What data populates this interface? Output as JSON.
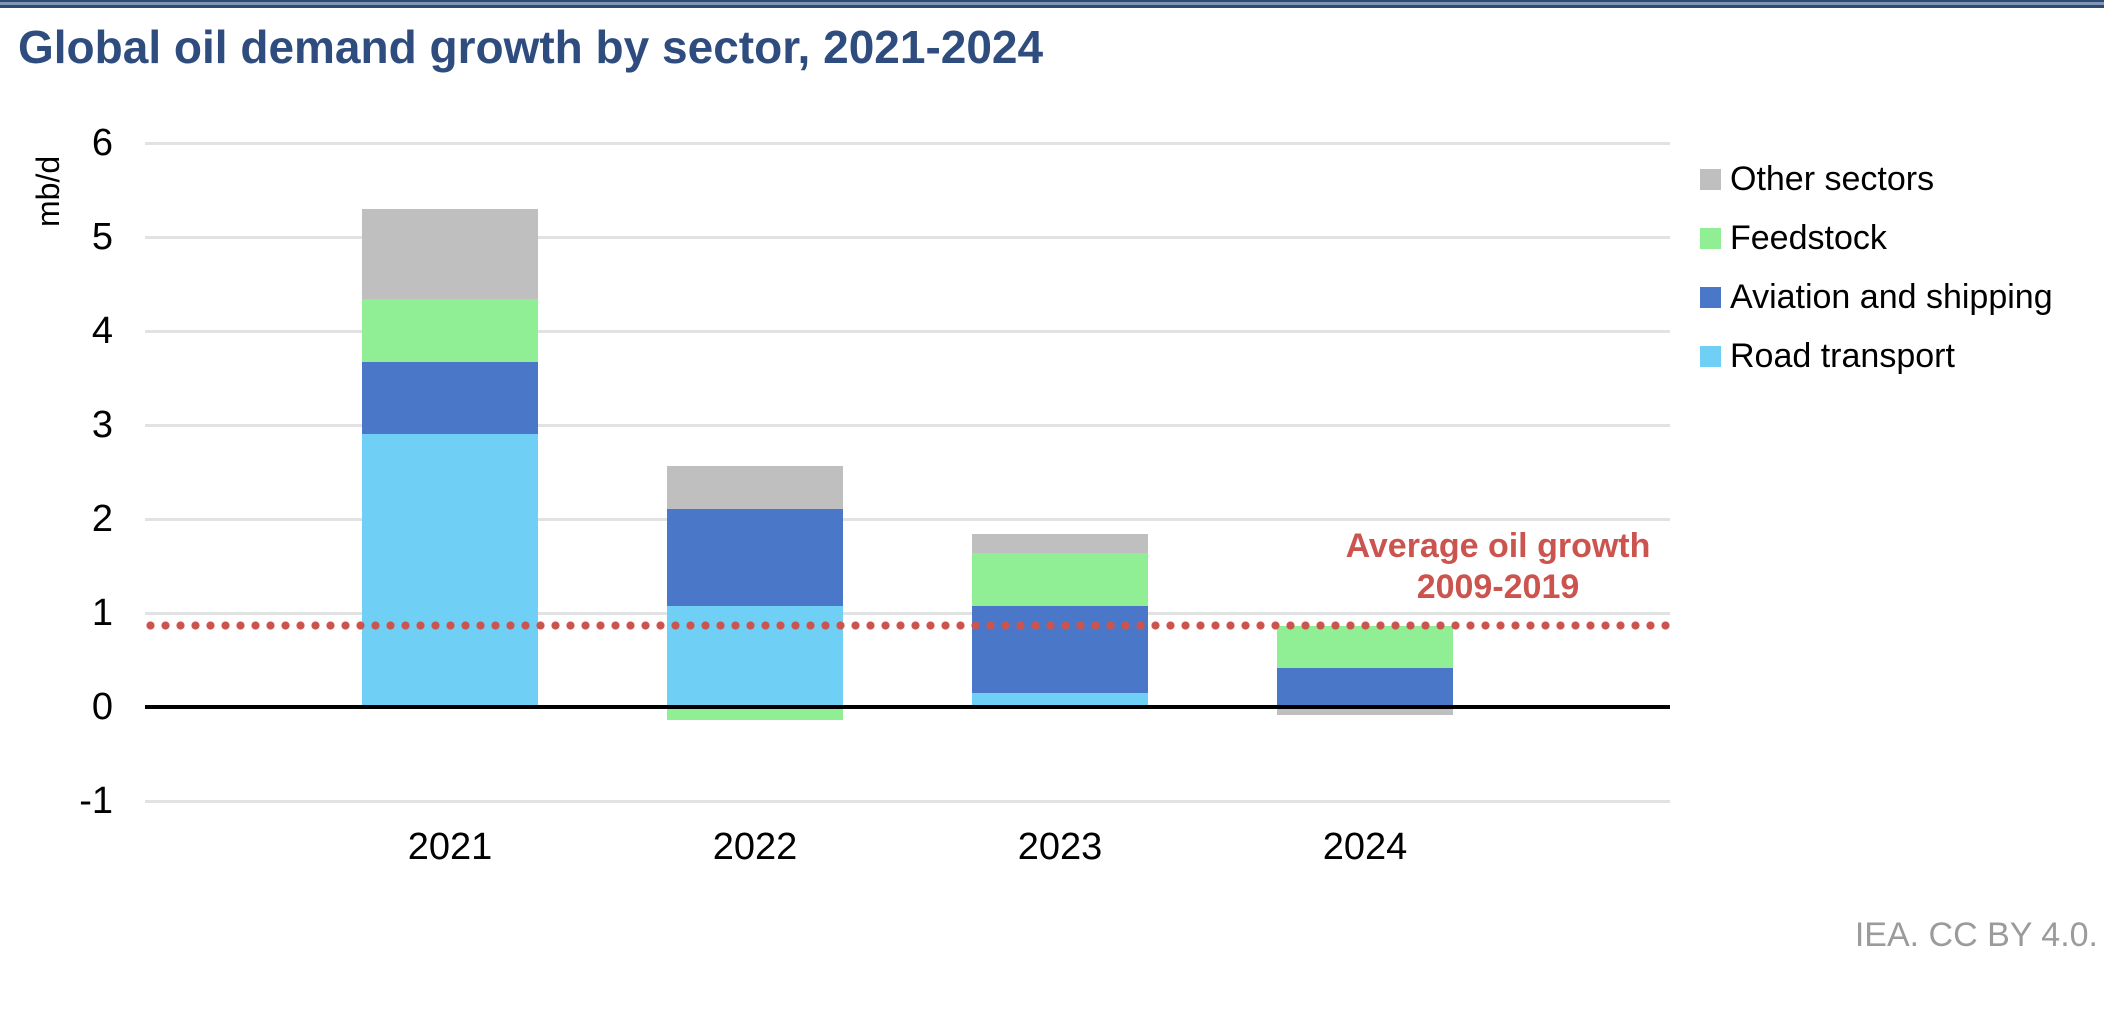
{
  "header": {
    "title": "Global oil demand growth by sector, 2021-2024"
  },
  "footer": {
    "credit": "IEA. CC BY 4.0."
  },
  "colors": {
    "title_text": "#2E4D7E",
    "top_rule": "#2E4B78",
    "gridline": "#E2E2E2",
    "zero_line": "#000000",
    "reference_red": "#CB544F",
    "credit_text": "#9B9B9B"
  },
  "chart_data": {
    "type": "bar",
    "stacked": true,
    "title": "Global oil demand growth by sector, 2021-2024",
    "xlabel": "",
    "ylabel": "mb/d",
    "ylim": [
      -1,
      6
    ],
    "yticks": [
      6,
      5,
      4,
      3,
      2,
      1,
      0,
      -1
    ],
    "grid": true,
    "legend_position": "right",
    "categories": [
      "2021",
      "2022",
      "2023",
      "2024"
    ],
    "series": [
      {
        "name": "Road transport",
        "color": "#6FCFF5",
        "values": [
          2.9,
          1.07,
          0.15,
          0.0
        ]
      },
      {
        "name": "Aviation and shipping",
        "color": "#4B77C9",
        "values": [
          0.77,
          1.04,
          0.92,
          0.41
        ]
      },
      {
        "name": "Feedstock",
        "color": "#90EE94",
        "values": [
          0.67,
          -0.14,
          0.57,
          0.45
        ]
      },
      {
        "name": "Other sectors",
        "color": "#BFBFBF",
        "values": [
          0.96,
          0.45,
          0.2,
          -0.08
        ]
      }
    ],
    "totals_positive": [
      5.3,
      2.56,
      1.84,
      0.86
    ],
    "reference_line": {
      "value": 0.87,
      "color": "#CB544F",
      "style": "dotted",
      "label_lines": [
        "Average oil growth",
        "2009-2019"
      ]
    }
  }
}
